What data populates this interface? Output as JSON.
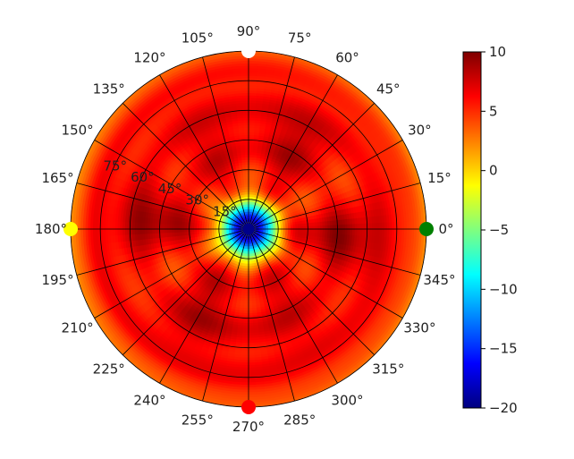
{
  "chart_data": {
    "type": "heatmap",
    "projection": "polar",
    "title": "",
    "angle_ticks": [
      "0°",
      "15°",
      "30°",
      "45°",
      "60°",
      "75°",
      "90°",
      "105°",
      "120°",
      "135°",
      "150°",
      "165°",
      "180°",
      "195°",
      "210°",
      "225°",
      "240°",
      "255°",
      "270°",
      "285°",
      "300°",
      "315°",
      "330°",
      "345°"
    ],
    "angle_tick_values_deg": [
      0,
      15,
      30,
      45,
      60,
      75,
      90,
      105,
      120,
      135,
      150,
      165,
      180,
      195,
      210,
      225,
      240,
      255,
      270,
      285,
      300,
      315,
      330,
      345
    ],
    "radial_ticks": [
      "15°",
      "30°",
      "45°",
      "60°",
      "75°"
    ],
    "radial_tick_values_deg": [
      15,
      30,
      45,
      60,
      75
    ],
    "radial_range_deg": [
      0,
      90
    ],
    "radial_tick_label_angle_deg": 157.5,
    "grid": true,
    "colormap": "jet",
    "colorbar": {
      "min": -20,
      "max": 10,
      "ticks": [
        10,
        5,
        0,
        -5,
        -10,
        -15,
        -20
      ],
      "tick_labels": [
        "10",
        "5",
        "0",
        "−5",
        "−10",
        "−15",
        "−20"
      ],
      "placement": "right"
    },
    "value_field": {
      "center_value": -20,
      "dominant_value": 6,
      "edge_value_near_0_and_180_deg": 2,
      "edge_value_near_90_and_270_deg": 3.5,
      "darker_lobes_value": 8
    },
    "markers": [
      {
        "angle_deg": 90,
        "radius_deg": 90,
        "color": "#ffffff"
      },
      {
        "angle_deg": 180,
        "radius_deg": 90,
        "color": "#ffff00"
      },
      {
        "angle_deg": 0,
        "radius_deg": 90,
        "color": "#008000"
      },
      {
        "angle_deg": 270,
        "radius_deg": 90,
        "color": "#ff0000"
      },
      {
        "angle_deg": 0,
        "radius_deg": 0,
        "color": "#00008b"
      }
    ]
  }
}
